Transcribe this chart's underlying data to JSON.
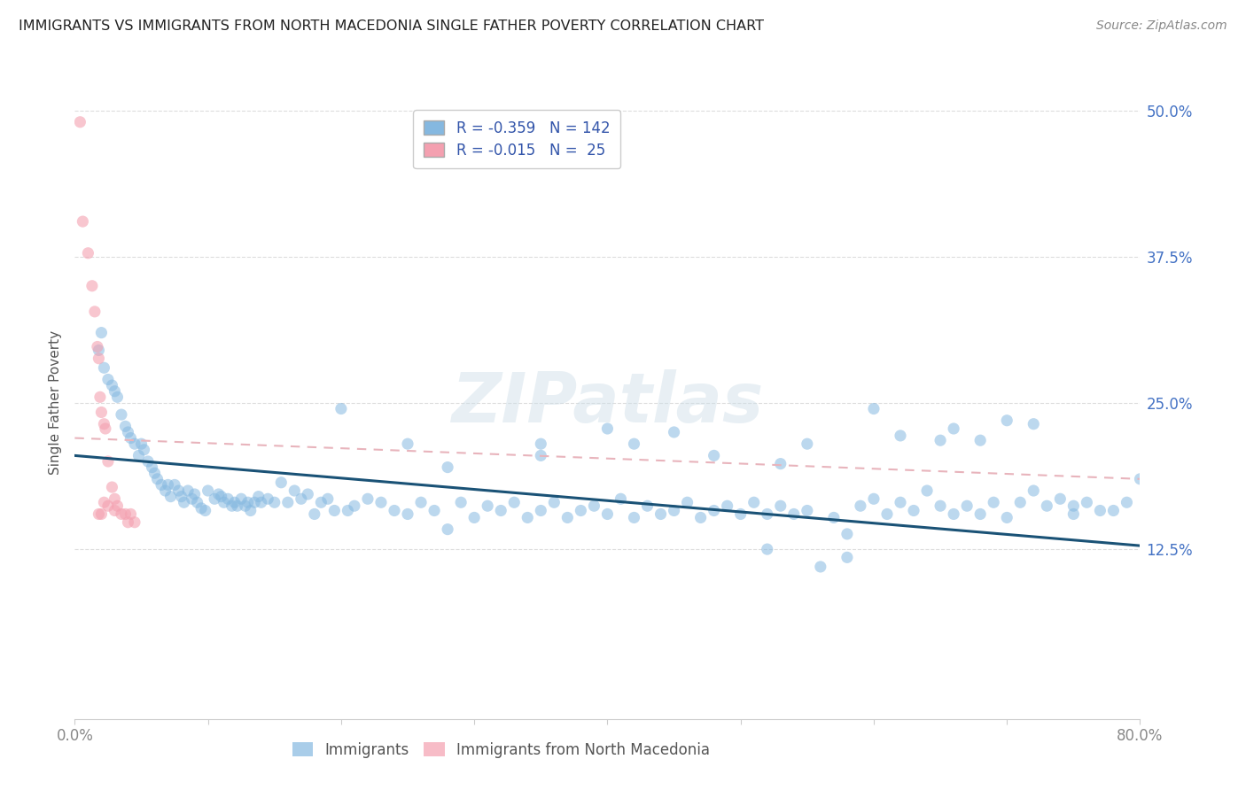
{
  "title": "IMMIGRANTS VS IMMIGRANTS FROM NORTH MACEDONIA SINGLE FATHER POVERTY CORRELATION CHART",
  "source": "Source: ZipAtlas.com",
  "ylabel": "Single Father Poverty",
  "xlim": [
    0.0,
    0.8
  ],
  "ylim": [
    -0.02,
    0.52
  ],
  "yticks": [
    0.0,
    0.125,
    0.25,
    0.375,
    0.5
  ],
  "ytick_labels": [
    "",
    "12.5%",
    "25.0%",
    "37.5%",
    "50.0%"
  ],
  "xticks": [
    0.0,
    0.1,
    0.2,
    0.3,
    0.4,
    0.5,
    0.6,
    0.7,
    0.8
  ],
  "xtick_labels": [
    "0.0%",
    "",
    "",
    "",
    "",
    "",
    "",
    "",
    "80.0%"
  ],
  "blue_color": "#85b8e0",
  "pink_color": "#f4a0b0",
  "blue_line_color": "#1a5276",
  "pink_line_color": "#d4a0b0",
  "legend_r_blue": "-0.359",
  "legend_n_blue": "142",
  "legend_r_pink": "-0.015",
  "legend_n_pink": "25",
  "background_color": "#ffffff",
  "grid_color": "#dddddd",
  "blue_points_x": [
    0.018,
    0.02,
    0.022,
    0.025,
    0.028,
    0.03,
    0.032,
    0.035,
    0.038,
    0.04,
    0.042,
    0.045,
    0.048,
    0.05,
    0.052,
    0.055,
    0.058,
    0.06,
    0.062,
    0.065,
    0.068,
    0.07,
    0.072,
    0.075,
    0.078,
    0.08,
    0.082,
    0.085,
    0.088,
    0.09,
    0.092,
    0.095,
    0.098,
    0.1,
    0.105,
    0.108,
    0.11,
    0.112,
    0.115,
    0.118,
    0.12,
    0.122,
    0.125,
    0.128,
    0.13,
    0.132,
    0.135,
    0.138,
    0.14,
    0.145,
    0.15,
    0.155,
    0.16,
    0.165,
    0.17,
    0.175,
    0.18,
    0.185,
    0.19,
    0.195,
    0.2,
    0.205,
    0.21,
    0.22,
    0.23,
    0.24,
    0.25,
    0.26,
    0.27,
    0.28,
    0.29,
    0.3,
    0.31,
    0.32,
    0.33,
    0.34,
    0.35,
    0.36,
    0.37,
    0.38,
    0.39,
    0.4,
    0.41,
    0.42,
    0.43,
    0.44,
    0.45,
    0.46,
    0.47,
    0.48,
    0.49,
    0.5,
    0.51,
    0.52,
    0.53,
    0.54,
    0.55,
    0.56,
    0.57,
    0.58,
    0.59,
    0.6,
    0.61,
    0.62,
    0.63,
    0.64,
    0.65,
    0.66,
    0.67,
    0.68,
    0.69,
    0.7,
    0.71,
    0.72,
    0.73,
    0.74,
    0.75,
    0.76,
    0.77,
    0.78,
    0.79,
    0.8,
    0.25,
    0.35,
    0.42,
    0.48,
    0.53,
    0.6,
    0.66,
    0.72,
    0.28,
    0.4,
    0.52,
    0.58,
    0.65,
    0.7,
    0.75,
    0.35,
    0.45,
    0.55,
    0.62,
    0.68
  ],
  "blue_points_y": [
    0.295,
    0.31,
    0.28,
    0.27,
    0.265,
    0.26,
    0.255,
    0.24,
    0.23,
    0.225,
    0.22,
    0.215,
    0.205,
    0.215,
    0.21,
    0.2,
    0.195,
    0.19,
    0.185,
    0.18,
    0.175,
    0.18,
    0.17,
    0.18,
    0.175,
    0.17,
    0.165,
    0.175,
    0.168,
    0.172,
    0.165,
    0.16,
    0.158,
    0.175,
    0.168,
    0.172,
    0.17,
    0.165,
    0.168,
    0.162,
    0.165,
    0.162,
    0.168,
    0.162,
    0.165,
    0.158,
    0.165,
    0.17,
    0.165,
    0.168,
    0.165,
    0.182,
    0.165,
    0.175,
    0.168,
    0.172,
    0.155,
    0.165,
    0.168,
    0.158,
    0.245,
    0.158,
    0.162,
    0.168,
    0.165,
    0.158,
    0.155,
    0.165,
    0.158,
    0.142,
    0.165,
    0.152,
    0.162,
    0.158,
    0.165,
    0.152,
    0.158,
    0.165,
    0.152,
    0.158,
    0.162,
    0.155,
    0.168,
    0.152,
    0.162,
    0.155,
    0.158,
    0.165,
    0.152,
    0.158,
    0.162,
    0.155,
    0.165,
    0.155,
    0.162,
    0.155,
    0.158,
    0.11,
    0.152,
    0.118,
    0.162,
    0.168,
    0.155,
    0.165,
    0.158,
    0.175,
    0.162,
    0.155,
    0.162,
    0.155,
    0.165,
    0.152,
    0.165,
    0.175,
    0.162,
    0.168,
    0.155,
    0.165,
    0.158,
    0.158,
    0.165,
    0.185,
    0.215,
    0.205,
    0.215,
    0.205,
    0.198,
    0.245,
    0.228,
    0.232,
    0.195,
    0.228,
    0.125,
    0.138,
    0.218,
    0.235,
    0.162,
    0.215,
    0.225,
    0.215,
    0.222,
    0.218
  ],
  "pink_points_x": [
    0.004,
    0.006,
    0.01,
    0.013,
    0.015,
    0.017,
    0.018,
    0.019,
    0.02,
    0.022,
    0.023,
    0.025,
    0.028,
    0.03,
    0.032,
    0.035,
    0.038,
    0.04,
    0.042,
    0.045,
    0.018,
    0.02,
    0.022,
    0.025,
    0.03
  ],
  "pink_points_y": [
    0.49,
    0.405,
    0.378,
    0.35,
    0.328,
    0.298,
    0.288,
    0.255,
    0.242,
    0.232,
    0.228,
    0.2,
    0.178,
    0.168,
    0.162,
    0.155,
    0.155,
    0.148,
    0.155,
    0.148,
    0.155,
    0.155,
    0.165,
    0.162,
    0.158
  ]
}
